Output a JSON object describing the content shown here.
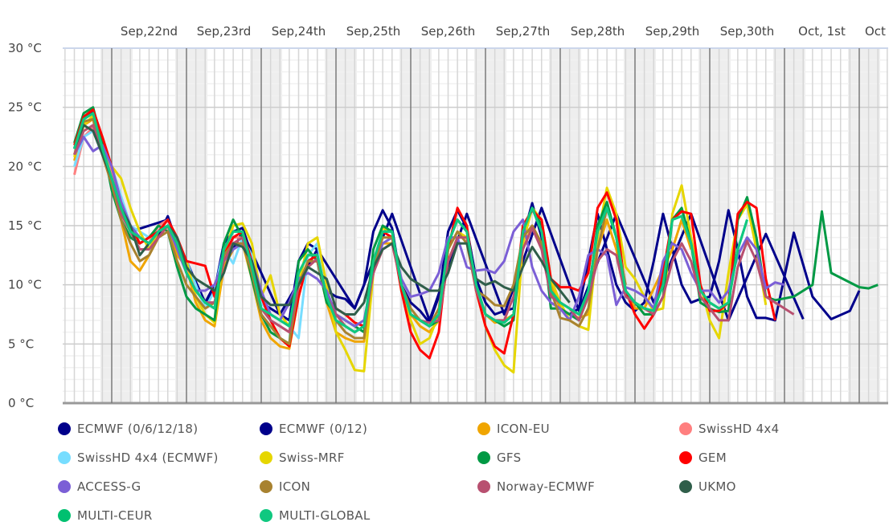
{
  "chart_data": {
    "type": "line",
    "title": "",
    "xlabel": "",
    "ylabel": "",
    "x_unit": "hours since Sep 21 00:00",
    "xlim": [
      8,
      273
    ],
    "ylim": [
      0,
      30
    ],
    "yticks": [
      0,
      5,
      10,
      15,
      20,
      25,
      30
    ],
    "ytick_labels": [
      "0 °C",
      "5 °C",
      "10 °C",
      "15 °C",
      "20 °C",
      "25 °C",
      "30 °C"
    ],
    "day_labels": [
      "Sep,22nd",
      "Sep,23rd",
      "Sep,24th",
      "Sep,25th",
      "Sep,26th",
      "Sep,27th",
      "Sep,28th",
      "Sep,29th",
      "Sep,30th",
      "Oct, 1st",
      "Oct"
    ],
    "grid": true,
    "legend_position": "bottom",
    "series": [
      {
        "name": "ECMWF (0/6/12/18)",
        "color": "#00008b",
        "x0": 12,
        "step": 3,
        "values": [
          21.5,
          24.2,
          24.6,
          22.0,
          19.0,
          16.5,
          14.5,
          14.0,
          13.5,
          14.2,
          15.8,
          13.5,
          11.5,
          9.5,
          8.5,
          9.5,
          13.5,
          14.5,
          14.8,
          12.5,
          8.5,
          8.0,
          7.5,
          7.0,
          12.0,
          13.5,
          13.0,
          9.5,
          9.0,
          8.8,
          8.0,
          10.0,
          14.5,
          16.3,
          14.8,
          10.0,
          8.5,
          7.8,
          6.8,
          9.0,
          14.5,
          16.3,
          14.8,
          10.5,
          8.5,
          7.5,
          7.8,
          8.0,
          14.0,
          16.9,
          14.0,
          10.0,
          8.0,
          7.5,
          8.0,
          12.0,
          16.0,
          13.0,
          10.0,
          8.5,
          7.8,
          8.5,
          12.0,
          16.0,
          13.0,
          10.0,
          8.5,
          8.8,
          9.0,
          12.0,
          16.3,
          13.0,
          9.0,
          7.2,
          7.2,
          7.0,
          null,
          14.4,
          null,
          9.0,
          null,
          7.1,
          null,
          7.8,
          9.5
        ]
      },
      {
        "name": "ECMWF (0/12)",
        "color": "#00008b",
        "x0": 12,
        "step": 3,
        "values": [
          21.5,
          24.0,
          24.5,
          21.5,
          null,
          null,
          14.5,
          null,
          null,
          null,
          15.5,
          null,
          null,
          null,
          8.5,
          null,
          null,
          null,
          14.5,
          null,
          null,
          null,
          7.5,
          null,
          null,
          null,
          13.0,
          null,
          null,
          null,
          8.0,
          null,
          null,
          null,
          16.0,
          null,
          null,
          null,
          7.0,
          null,
          null,
          null,
          16.0,
          null,
          null,
          null,
          7.5,
          null,
          null,
          null,
          16.5,
          null,
          null,
          null,
          7.8,
          null,
          null,
          null,
          16.0,
          null,
          null,
          null,
          8.5,
          null,
          null,
          null,
          16.0,
          null,
          null,
          null,
          7.0,
          null,
          null,
          null,
          14.3,
          null,
          null,
          null,
          7.1
        ]
      },
      {
        "name": "ICON-EU",
        "color": "#f0a500",
        "x0": 12,
        "step": 3,
        "values": [
          20.5,
          23.5,
          24.0,
          21.0,
          18.5,
          15.5,
          12.0,
          11.2,
          12.5,
          14.0,
          15.0,
          12.5,
          11.5,
          8.5,
          7.0,
          6.5,
          11.5,
          13.0,
          13.5,
          10.5,
          7.0,
          5.5,
          4.8,
          4.6,
          9.0,
          12.0,
          12.0,
          8.5,
          6.0,
          5.5,
          5.2,
          5.2,
          11.0,
          13.5,
          13.5,
          10.0,
          7.5,
          6.5,
          6.0,
          7.0,
          12.0,
          14.0,
          14.0,
          10.0,
          7.5,
          6.8,
          7.0,
          7.5,
          13.0,
          15.0,
          13.5,
          10.0,
          8.0,
          7.5,
          7.2,
          7.5,
          13.0,
          15.5,
          13.0,
          9.5,
          8.0,
          8.0,
          null,
          null,
          13.0,
          15.5,
          13.0,
          null,
          null,
          null
        ]
      },
      {
        "name": "SwissHD 4x4",
        "color": "#ff7f7f",
        "x0": 12,
        "step": 3,
        "values": [
          19.3,
          22.5,
          23.3,
          21.5,
          19.5,
          16.0,
          14.5,
          14.0,
          13.5,
          15.0,
          15.5,
          13.0,
          11.5,
          9.5,
          8.5,
          8.5,
          12.0,
          14.0,
          14.0,
          11.5,
          8.0,
          7.0,
          6.5,
          6.0,
          11.0,
          12.5,
          12.5,
          9.0
        ]
      },
      {
        "name": "SwissHD 4x4 (ECMWF)",
        "color": "#77ddff",
        "x0": 12,
        "step": 3,
        "values": [
          20.0,
          22.5,
          23.0,
          21.5,
          20.0,
          17.5,
          15.0,
          14.5,
          14.0,
          14.5,
          15.5,
          13.5,
          12.0,
          10.0,
          8.0,
          9.5,
          13.0,
          11.8,
          14.0,
          12.5,
          8.5,
          7.5,
          7.0,
          6.5,
          5.5,
          12.5,
          13.5,
          9.5
        ]
      },
      {
        "name": "Swiss-MRF",
        "color": "#e6d600",
        "x0": 12,
        "step": 3,
        "values": [
          20.8,
          23.5,
          24.3,
          21.5,
          20.0,
          19.0,
          16.5,
          14.5,
          13.0,
          14.5,
          15.0,
          13.0,
          12.0,
          9.0,
          7.5,
          6.8,
          12.5,
          15.0,
          15.2,
          13.5,
          9.0,
          10.8,
          7.5,
          6.5,
          10.0,
          13.5,
          14.0,
          10.0,
          6.0,
          4.5,
          2.8,
          2.7,
          11.0,
          14.8,
          14.5,
          9.5,
          7.0,
          5.0,
          5.5,
          7.5,
          13.0,
          14.5,
          14.0,
          9.5,
          6.5,
          4.5,
          3.2,
          2.6,
          13.5,
          16.5,
          15.5,
          10.5,
          8.5,
          7.0,
          6.5,
          6.2,
          14.0,
          18.2,
          16.0,
          11.5,
          10.5,
          9.0,
          7.8,
          8.0,
          16.0,
          18.4,
          14.0,
          10.0,
          7.0,
          5.5,
          11.0,
          15.5,
          16.8,
          13.0,
          8.3
        ]
      },
      {
        "name": "GFS",
        "color": "#009944",
        "x0": 12,
        "step": 3,
        "values": [
          22.0,
          24.5,
          25.0,
          22.0,
          18.0,
          15.5,
          14.0,
          13.5,
          14.0,
          15.0,
          14.5,
          11.5,
          9.0,
          8.0,
          7.5,
          7.0,
          13.5,
          15.5,
          14.0,
          10.5,
          7.5,
          6.0,
          5.5,
          5.0,
          12.0,
          13.0,
          12.0,
          8.5,
          7.5,
          7.0,
          6.5,
          6.0,
          13.0,
          15.0,
          14.5,
          10.0,
          7.5,
          7.0,
          6.5,
          7.0,
          13.5,
          15.5,
          14.5,
          10.0,
          7.5,
          7.0,
          6.5,
          7.0,
          14.5,
          16.5,
          15.0,
          8.0,
          8.0,
          7.5,
          7.0,
          9.0,
          15.0,
          17.0,
          14.0,
          9.0,
          8.5,
          7.5,
          7.5,
          9.0,
          15.5,
          16.5,
          13.5,
          8.5,
          8.0,
          7.7,
          7.8,
          15.5,
          17.4,
          14.0,
          9.0,
          8.7,
          null,
          9.0,
          null,
          10.0,
          16.2,
          11.0,
          null,
          null,
          9.8,
          9.7,
          10.0
        ]
      },
      {
        "name": "GEM",
        "color": "#ff0000",
        "x0": 12,
        "step": 3,
        "values": [
          21.8,
          24.2,
          24.8,
          22.5,
          20.0,
          17.0,
          15.0,
          13.5,
          14.0,
          14.5,
          15.5,
          14.0,
          12.0,
          11.8,
          11.6,
          9.0,
          12.5,
          14.0,
          14.5,
          12.0,
          9.0,
          7.0,
          5.5,
          4.8,
          9.0,
          12.0,
          12.5,
          9.0,
          8.0,
          7.5,
          6.8,
          6.5,
          11.5,
          14.5,
          14.0,
          9.5,
          6.0,
          4.5,
          3.8,
          6.0,
          13.0,
          16.5,
          15.0,
          9.5,
          6.5,
          4.8,
          4.2,
          7.5,
          15.0,
          16.3,
          15.5,
          10.5,
          9.8,
          9.8,
          9.5,
          11.0,
          16.5,
          17.8,
          15.5,
          9.5,
          7.5,
          6.3,
          7.5,
          11.0,
          15.5,
          16.2,
          16.0,
          10.0,
          7.8,
          7.8,
          8.5,
          16.0,
          17.0,
          16.5,
          10.5,
          7.0
        ]
      },
      {
        "name": "ACCESS-G",
        "color": "#7b5fd6",
        "x0": 12,
        "step": 3,
        "values": [
          21.0,
          22.5,
          21.3,
          21.8,
          20.0,
          17.0,
          15.0,
          14.0,
          13.5,
          14.5,
          15.0,
          13.0,
          11.0,
          9.5,
          9.5,
          10.0,
          12.0,
          13.0,
          13.5,
          12.0,
          9.5,
          7.5,
          7.0,
          8.5,
          10.5,
          11.0,
          10.5,
          9.5,
          7.5,
          7.0,
          6.5,
          7.0,
          11.0,
          13.5,
          14.0,
          10.5,
          9.0,
          9.2,
          9.5,
          11.0,
          14.0,
          14.0,
          11.5,
          11.2,
          11.3,
          11.0,
          12.0,
          14.5,
          15.5,
          11.5,
          9.5,
          8.5,
          8.0,
          7.0,
          9.0,
          12.5,
          13.0,
          12.5,
          8.3,
          9.8,
          9.5,
          9.0,
          8.0,
          12.0,
          13.5,
          13.0,
          11.0,
          9.5,
          9.5,
          8.5,
          9.5,
          12.5,
          14.0,
          13.0,
          9.7,
          10.2,
          10.0
        ]
      },
      {
        "name": "ICON",
        "color": "#a88230",
        "x0": 12,
        "step": 3,
        "values": [
          21.0,
          23.8,
          24.0,
          21.0,
          18.5,
          15.5,
          13.5,
          12.0,
          12.5,
          14.0,
          14.5,
          12.0,
          10.0,
          9.0,
          8.0,
          8.5,
          12.5,
          13.5,
          13.5,
          11.0,
          7.5,
          6.5,
          5.5,
          5.0,
          10.0,
          12.0,
          12.0,
          9.0,
          7.0,
          6.0,
          5.5,
          5.5,
          11.5,
          14.0,
          14.0,
          10.0,
          8.0,
          7.0,
          6.5,
          8.0,
          13.0,
          14.5,
          13.5,
          9.5,
          9.0,
          8.3,
          8.2,
          10.0,
          14.0,
          15.0,
          13.5,
          9.5,
          7.2,
          7.0,
          6.5,
          8.0,
          13.0,
          16.5,
          14.0,
          10.0
        ]
      },
      {
        "name": "Norway-ECMWF",
        "color": "#b85070",
        "x0": 12,
        "step": 3,
        "values": [
          21.0,
          23.0,
          23.5,
          21.0,
          19.0,
          16.0,
          14.5,
          13.0,
          13.0,
          14.0,
          15.0,
          13.5,
          11.0,
          9.5,
          8.5,
          8.5,
          12.0,
          13.5,
          14.0,
          11.5,
          8.0,
          7.0,
          6.5,
          6.0,
          10.0,
          11.5,
          12.2,
          9.0,
          7.5,
          6.5,
          6.0,
          6.5,
          11.0,
          13.0,
          13.5,
          10.0,
          7.5,
          7.0,
          6.8,
          7.0,
          12.0,
          14.0,
          14.0,
          9.5,
          7.5,
          7.0,
          7.0,
          9.0,
          13.0,
          14.8,
          13.0,
          9.0,
          8.5,
          8.0,
          7.0,
          9.0,
          12.0,
          13.0,
          12.5,
          9.0,
          8.5,
          8.0,
          7.5,
          9.0,
          12.0,
          13.5,
          12.0,
          9.0,
          8.0,
          7.0,
          7.0,
          11.5,
          13.7,
          12.0,
          9.0,
          8.5,
          8.0,
          7.5
        ]
      },
      {
        "name": "UKMO",
        "color": "#2f5e4a",
        "x0": 12,
        "step": 3,
        "values": [
          21.5,
          23.5,
          23.0,
          21.0,
          19.0,
          16.5,
          15.0,
          12.5,
          13.5,
          14.5,
          15.0,
          14.0,
          11.5,
          10.5,
          10.0,
          9.5,
          11.0,
          13.5,
          13.2,
          12.0,
          9.0,
          8.3,
          8.3,
          8.3,
          10.0,
          11.5,
          11.0,
          10.5,
          8.0,
          7.5,
          7.5,
          8.5,
          11.5,
          13.0,
          13.5,
          11.5,
          10.5,
          10.0,
          9.5,
          9.5,
          11.0,
          13.5,
          13.5,
          10.5,
          10.0,
          10.3,
          9.8,
          9.5,
          11.5,
          13.2,
          12.0,
          10.5,
          9.5,
          8.5
        ]
      },
      {
        "name": "MULTI-CEUR",
        "color": "#00c070",
        "x0": 12,
        "step": 3,
        "values": [
          21.5,
          24.0,
          24.5,
          21.5,
          19.0,
          16.5,
          14.5,
          14.0,
          13.5,
          14.5,
          15.0,
          13.5,
          11.0,
          9.5,
          8.5,
          8.0,
          13.0,
          14.5,
          14.5,
          11.5,
          8.0,
          7.5,
          7.0,
          6.5,
          11.0,
          12.5,
          12.5,
          9.0,
          7.0,
          6.5,
          6.0,
          6.5,
          12.0,
          14.5,
          14.5,
          10.0,
          7.5,
          7.0,
          6.5,
          7.5,
          13.5,
          15.5,
          14.5,
          10.0,
          7.5,
          7.0,
          6.8,
          7.5,
          14.5,
          16.5,
          14.5,
          9.5,
          8.5,
          8.0,
          7.5,
          9.5,
          14.5,
          16.5,
          14.0,
          9.5,
          8.5,
          8.0,
          7.8,
          10.0,
          15.5,
          15.8,
          13.5,
          9.5,
          8.5,
          8.0,
          8.5,
          13.0,
          15.5
        ]
      },
      {
        "name": "MULTI-GLOBAL",
        "color": "#10c880",
        "x0": 12,
        "step": 3,
        "values": [
          21.5,
          24.0,
          24.5,
          21.5,
          19.0,
          16.5,
          14.5,
          14.0,
          13.5,
          14.5,
          15.0,
          13.5,
          11.0,
          9.5,
          8.5,
          8.0,
          13.0,
          14.5,
          14.5,
          11.5,
          8.0,
          7.5,
          7.0,
          6.5,
          11.0,
          12.5,
          12.5,
          9.0,
          7.0,
          6.5,
          6.0,
          6.5,
          12.0,
          14.5,
          14.5,
          10.0,
          7.5,
          7.0,
          6.5,
          7.5,
          13.5,
          15.5,
          14.5,
          10.0,
          7.5,
          7.0,
          6.8,
          7.5,
          14.5,
          16.5,
          14.5,
          9.5,
          8.5,
          8.0,
          7.5,
          9.5,
          14.5,
          16.5,
          14.0,
          9.5,
          8.5,
          8.0,
          7.8,
          10.0,
          15.5,
          15.8,
          13.5,
          9.5,
          8.5,
          8.0,
          8.5,
          13.0,
          15.5
        ]
      }
    ]
  }
}
